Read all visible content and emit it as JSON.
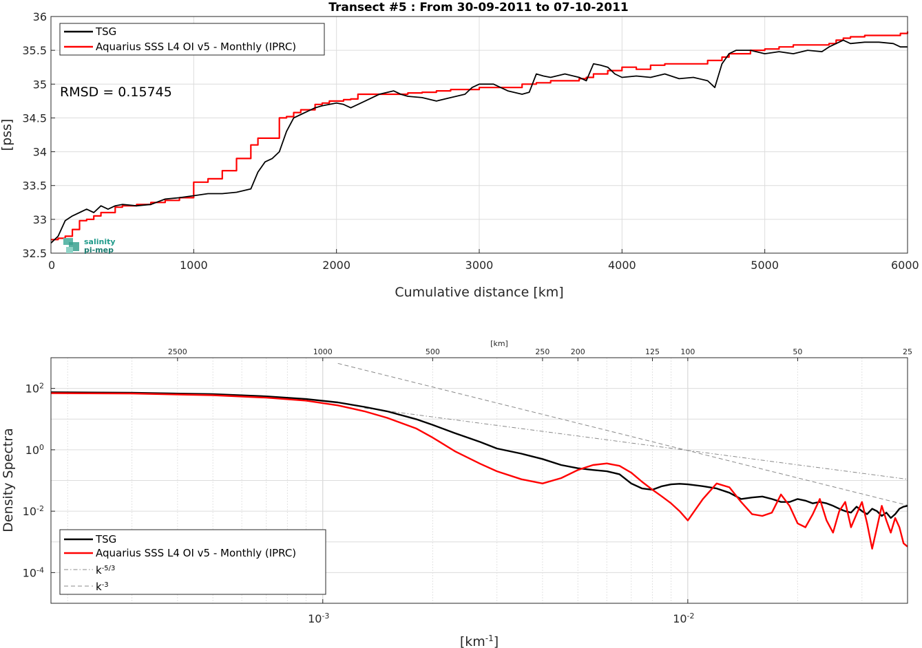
{
  "chart_data": [
    {
      "type": "line",
      "title": "Transect #5 : From 30-09-2011 to 07-10-2011",
      "xlabel": "Cumulative distance [km]",
      "ylabel": "[pss]",
      "xlim": [
        0,
        6000
      ],
      "ylim": [
        32.5,
        36
      ],
      "x_ticks": [
        "0",
        "1000",
        "2000",
        "3000",
        "4000",
        "5000",
        "6000"
      ],
      "y_ticks": [
        "32.5",
        "33",
        "33.5",
        "34",
        "34.5",
        "35",
        "35.5",
        "36"
      ],
      "grid": true,
      "legend": "top-left",
      "annotation": "RMSD = 0.15745",
      "logo_lines": [
        "salinity",
        "pi-mep"
      ],
      "series": [
        {
          "name": "TSG",
          "color": "#000000",
          "x": [
            0,
            50,
            100,
            150,
            200,
            250,
            300,
            350,
            400,
            450,
            500,
            600,
            700,
            800,
            900,
            1000,
            1100,
            1200,
            1300,
            1400,
            1450,
            1500,
            1550,
            1600,
            1650,
            1700,
            1750,
            1800,
            1850,
            1900,
            1950,
            2000,
            2050,
            2100,
            2150,
            2200,
            2300,
            2400,
            2450,
            2500,
            2600,
            2700,
            2800,
            2900,
            2950,
            3000,
            3100,
            3200,
            3300,
            3350,
            3400,
            3450,
            3500,
            3600,
            3700,
            3750,
            3800,
            3850,
            3900,
            3950,
            4000,
            4100,
            4200,
            4300,
            4400,
            4500,
            4600,
            4650,
            4700,
            4750,
            4800,
            4900,
            5000,
            5100,
            5200,
            5300,
            5400,
            5450,
            5500,
            5550,
            5600,
            5700,
            5800,
            5900,
            5950,
            6000
          ],
          "y": [
            32.65,
            32.75,
            32.98,
            33.05,
            33.1,
            33.15,
            33.1,
            33.2,
            33.15,
            33.2,
            33.22,
            33.2,
            33.22,
            33.3,
            33.32,
            33.35,
            33.38,
            33.38,
            33.4,
            33.45,
            33.7,
            33.85,
            33.9,
            34.0,
            34.3,
            34.5,
            34.55,
            34.6,
            34.65,
            34.68,
            34.7,
            34.72,
            34.7,
            34.65,
            34.7,
            34.75,
            34.85,
            34.9,
            34.85,
            34.82,
            34.8,
            34.75,
            34.8,
            34.85,
            34.95,
            35.0,
            35.0,
            34.9,
            34.85,
            34.88,
            35.15,
            35.12,
            35.1,
            35.15,
            35.1,
            35.05,
            35.3,
            35.28,
            35.25,
            35.15,
            35.1,
            35.12,
            35.1,
            35.15,
            35.08,
            35.1,
            35.05,
            34.95,
            35.3,
            35.45,
            35.5,
            35.5,
            35.45,
            35.48,
            35.45,
            35.5,
            35.48,
            35.55,
            35.6,
            35.65,
            35.6,
            35.62,
            35.62,
            35.6,
            35.55,
            35.55
          ]
        },
        {
          "name": "Aquarius SSS L4 OI v5 - Monthly (IPRC)",
          "color": "#ff0000",
          "x": [
            0,
            50,
            100,
            150,
            200,
            250,
            300,
            350,
            400,
            450,
            500,
            600,
            700,
            800,
            900,
            1000,
            1100,
            1200,
            1300,
            1400,
            1450,
            1500,
            1550,
            1600,
            1650,
            1700,
            1750,
            1800,
            1850,
            1900,
            1950,
            2000,
            2050,
            2100,
            2150,
            2200,
            2300,
            2400,
            2450,
            2500,
            2600,
            2700,
            2800,
            2900,
            2950,
            3000,
            3100,
            3200,
            3300,
            3350,
            3400,
            3450,
            3500,
            3600,
            3700,
            3750,
            3800,
            3850,
            3900,
            3950,
            4000,
            4100,
            4200,
            4300,
            4400,
            4500,
            4600,
            4650,
            4700,
            4750,
            4800,
            4900,
            5000,
            5100,
            5200,
            5300,
            5400,
            5450,
            5500,
            5550,
            5600,
            5700,
            5800,
            5900,
            5950,
            6000
          ],
          "y": [
            32.7,
            32.72,
            32.75,
            32.85,
            32.98,
            33.0,
            33.05,
            33.1,
            33.1,
            33.18,
            33.2,
            33.22,
            33.25,
            33.28,
            33.32,
            33.55,
            33.6,
            33.72,
            33.9,
            34.1,
            34.2,
            34.2,
            34.2,
            34.5,
            34.52,
            34.58,
            34.62,
            34.62,
            34.7,
            34.72,
            34.75,
            34.75,
            34.77,
            34.78,
            34.85,
            34.85,
            34.85,
            34.85,
            34.85,
            34.87,
            34.88,
            34.9,
            34.92,
            34.92,
            34.92,
            34.95,
            34.95,
            34.95,
            35.0,
            35.0,
            35.02,
            35.02,
            35.05,
            35.05,
            35.08,
            35.1,
            35.15,
            35.15,
            35.2,
            35.2,
            35.25,
            35.22,
            35.28,
            35.3,
            35.3,
            35.3,
            35.35,
            35.35,
            35.4,
            35.45,
            35.45,
            35.5,
            35.52,
            35.55,
            35.58,
            35.58,
            35.58,
            35.6,
            35.65,
            35.68,
            35.7,
            35.72,
            35.72,
            35.72,
            35.75,
            35.78
          ]
        }
      ]
    },
    {
      "type": "line",
      "title": "",
      "xlabel": "[km-1]",
      "ylabel": "Density Spectra",
      "top_axis_label": "[km]",
      "xlim": [
        0.00018,
        0.04
      ],
      "ylim": [
        1e-05,
        1000
      ],
      "x_scale": "log",
      "y_scale": "log",
      "x_ticks": [
        "10-3",
        "10-2"
      ],
      "top_ticks": [
        {
          "label": "2500",
          "value": 0.0004
        },
        {
          "label": "1000",
          "value": 0.001
        },
        {
          "label": "500",
          "value": 0.002
        },
        {
          "label": "250",
          "value": 0.004
        },
        {
          "label": "200",
          "value": 0.005
        },
        {
          "label": "125",
          "value": 0.008
        },
        {
          "label": "100",
          "value": 0.01
        },
        {
          "label": "50",
          "value": 0.02
        },
        {
          "label": "25",
          "value": 0.04
        }
      ],
      "y_ticks": [
        "10-4",
        "10-2",
        "100",
        "102"
      ],
      "grid": true,
      "legend": "bottom-left",
      "series": [
        {
          "name": "TSG",
          "color": "#000000",
          "x": [
            0.00018,
            0.0003,
            0.0005,
            0.0007,
            0.0009,
            0.0011,
            0.0013,
            0.0015,
            0.0018,
            0.002,
            0.0023,
            0.0027,
            0.003,
            0.0035,
            0.004,
            0.0045,
            0.005,
            0.0055,
            0.006,
            0.0065,
            0.007,
            0.0075,
            0.008,
            0.0085,
            0.009,
            0.0095,
            0.01,
            0.011,
            0.012,
            0.013,
            0.014,
            0.015,
            0.016,
            0.017,
            0.018,
            0.019,
            0.02,
            0.021,
            0.022,
            0.023,
            0.024,
            0.025,
            0.026,
            0.027,
            0.028,
            0.029,
            0.03,
            0.031,
            0.032,
            0.033,
            0.034,
            0.035,
            0.036,
            0.037,
            0.038,
            0.039,
            0.04
          ],
          "y": [
            75,
            72,
            65,
            55,
            45,
            35,
            25,
            18,
            10,
            6.5,
            3.5,
            1.8,
            1.1,
            0.75,
            0.5,
            0.32,
            0.25,
            0.22,
            0.2,
            0.16,
            0.08,
            0.055,
            0.05,
            0.065,
            0.075,
            0.078,
            0.075,
            0.065,
            0.055,
            0.04,
            0.025,
            0.028,
            0.03,
            0.025,
            0.02,
            0.02,
            0.025,
            0.022,
            0.018,
            0.02,
            0.018,
            0.015,
            0.012,
            0.01,
            0.009,
            0.014,
            0.01,
            0.008,
            0.012,
            0.01,
            0.007,
            0.009,
            0.006,
            0.008,
            0.012,
            0.014,
            0.015
          ]
        },
        {
          "name": "Aquarius SSS L4 OI v5 - Monthly (IPRC)",
          "color": "#ff0000",
          "x": [
            0.00018,
            0.0003,
            0.0005,
            0.0007,
            0.0009,
            0.0011,
            0.0013,
            0.0015,
            0.0018,
            0.002,
            0.0023,
            0.0027,
            0.003,
            0.0035,
            0.004,
            0.0045,
            0.005,
            0.0055,
            0.006,
            0.0065,
            0.007,
            0.0075,
            0.008,
            0.0085,
            0.009,
            0.0095,
            0.01,
            0.011,
            0.012,
            0.013,
            0.014,
            0.015,
            0.016,
            0.017,
            0.018,
            0.019,
            0.02,
            0.021,
            0.022,
            0.023,
            0.024,
            0.025,
            0.026,
            0.027,
            0.028,
            0.029,
            0.03,
            0.031,
            0.032,
            0.033,
            0.034,
            0.035,
            0.036,
            0.037,
            0.038,
            0.039,
            0.04
          ],
          "y": [
            70,
            68,
            60,
            50,
            40,
            28,
            18,
            11,
            5,
            2.5,
            0.9,
            0.35,
            0.2,
            0.11,
            0.08,
            0.12,
            0.22,
            0.32,
            0.36,
            0.3,
            0.18,
            0.09,
            0.05,
            0.03,
            0.018,
            0.01,
            0.005,
            0.025,
            0.08,
            0.06,
            0.02,
            0.008,
            0.007,
            0.009,
            0.035,
            0.015,
            0.004,
            0.003,
            0.008,
            0.025,
            0.005,
            0.002,
            0.01,
            0.02,
            0.003,
            0.008,
            0.02,
            0.004,
            0.0006,
            0.003,
            0.015,
            0.005,
            0.002,
            0.006,
            0.003,
            0.0009,
            0.0007
          ]
        },
        {
          "name": "k-5/3",
          "color": "#888888",
          "style": "dashdot",
          "x": [
            0.0013,
            0.04
          ],
          "y": [
            23,
            0.11
          ]
        },
        {
          "name": "k-3",
          "color": "#888888",
          "style": "dashed",
          "x": [
            0.0011,
            0.04
          ],
          "y": [
            650,
            0.0156
          ]
        }
      ]
    }
  ]
}
